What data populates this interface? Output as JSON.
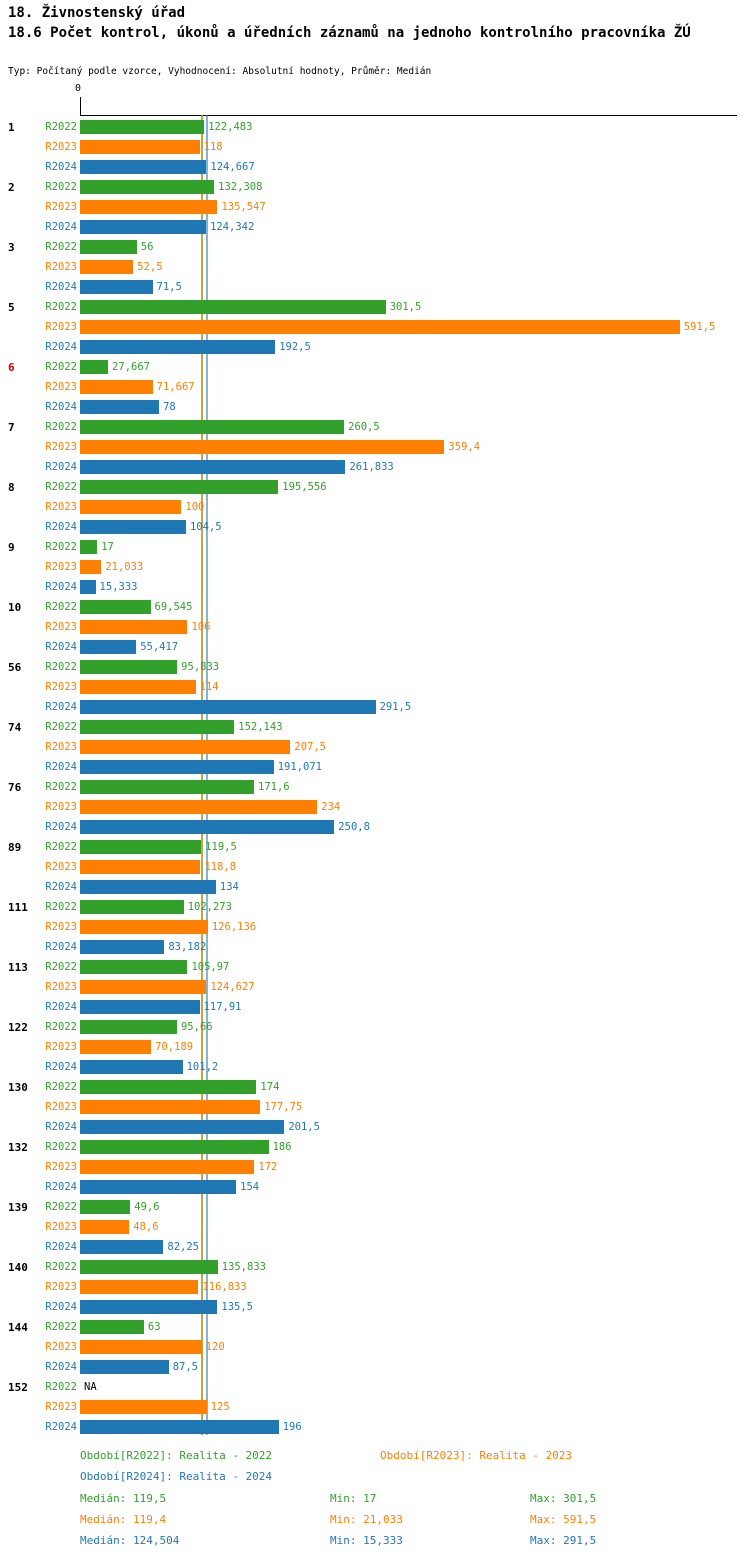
{
  "header": {
    "title1": "18. Živnostenský úřad",
    "title2": "18.6 Počet kontrol, úkonů a úředních záznamů na jednoho kontrolního pracovníka ŽÚ",
    "subtitle": "Typ: Počítaný podle vzorce, Vyhodnocení: Absolutní hodnoty, Průměr: Medián"
  },
  "colors": {
    "r2022": "#33a02c",
    "r2023": "#ff7f00",
    "r2024": "#1f78b4",
    "highlight": "#e00000"
  },
  "chart_data": {
    "type": "bar",
    "orientation": "horizontal",
    "x_zero_label": "0",
    "xlim": [
      0,
      646
    ],
    "grid": false,
    "categories": [
      "1",
      "2",
      "3",
      "5",
      "6",
      "7",
      "8",
      "9",
      "10",
      "56",
      "74",
      "76",
      "89",
      "111",
      "113",
      "122",
      "130",
      "132",
      "139",
      "140",
      "144",
      "152"
    ],
    "highlighted_categories": [
      "6"
    ],
    "series": [
      {
        "name": "R2022",
        "color_key": "r2022",
        "values": [
          122.483,
          132.308,
          56,
          301.5,
          27.667,
          260.5,
          195.556,
          17,
          69.545,
          95.833,
          152.143,
          171.6,
          119.5,
          102.273,
          105.97,
          95.66,
          174,
          186,
          49.6,
          135.833,
          63,
          null
        ],
        "labels": [
          "122,483",
          "132,308",
          "56",
          "301,5",
          "27,667",
          "260,5",
          "195,556",
          "17",
          "69,545",
          "95,833",
          "152,143",
          "171,6",
          "119,5",
          "102,273",
          "105,97",
          "95,66",
          "174",
          "186",
          "49,6",
          "135,833",
          "63",
          "NA"
        ]
      },
      {
        "name": "R2023",
        "color_key": "r2023",
        "values": [
          118,
          135.547,
          52.5,
          591.5,
          71.667,
          359.4,
          100,
          21.033,
          106,
          114,
          207.5,
          234,
          118.8,
          126.136,
          124.627,
          70.189,
          177.75,
          172,
          48.6,
          116.833,
          120,
          125
        ],
        "labels": [
          "118",
          "135,547",
          "52,5",
          "591,5",
          "71,667",
          "359,4",
          "100",
          "21,033",
          "106",
          "114",
          "207,5",
          "234",
          "118,8",
          "126,136",
          "124,627",
          "70,189",
          "177,75",
          "172",
          "48,6",
          "116,833",
          "120",
          "125"
        ]
      },
      {
        "name": "R2024",
        "color_key": "r2024",
        "values": [
          124.667,
          124.342,
          71.5,
          192.5,
          78,
          261.833,
          104.5,
          15.333,
          55.417,
          291.5,
          191.071,
          250.8,
          134,
          83.182,
          117.91,
          101.2,
          201.5,
          154,
          82.25,
          135.5,
          87.5,
          196
        ],
        "labels": [
          "124,667",
          "124,342",
          "71,5",
          "192,5",
          "78",
          "261,833",
          "104,5",
          "15,333",
          "55,417",
          "291,5",
          "191,071",
          "250,8",
          "134",
          "83,182",
          "117,91",
          "101,2",
          "201,5",
          "154",
          "82,25",
          "135,5",
          "87,5",
          "196"
        ]
      }
    ],
    "median_lines": [
      {
        "value": 119.5,
        "color_key": "r2022"
      },
      {
        "value": 119.4,
        "color_key": "r2023"
      },
      {
        "value": 124.504,
        "color_key": "r2024"
      }
    ]
  },
  "legend": {
    "items": [
      {
        "label": "Období[R2022]: Realita - 2022"
      },
      {
        "label": "Období[R2023]: Realita - 2023"
      },
      {
        "label": "Období[R2024]: Realita - 2024"
      }
    ]
  },
  "stats": {
    "rows": [
      {
        "median": "Medián: 119,5",
        "min": "Min: 17",
        "max": "Max: 301,5"
      },
      {
        "median": "Medián: 119,4",
        "min": "Min: 21,033",
        "max": "Max: 591,5"
      },
      {
        "median": "Medián: 124,504",
        "min": "Min: 15,333",
        "max": "Max: 291,5"
      }
    ]
  }
}
